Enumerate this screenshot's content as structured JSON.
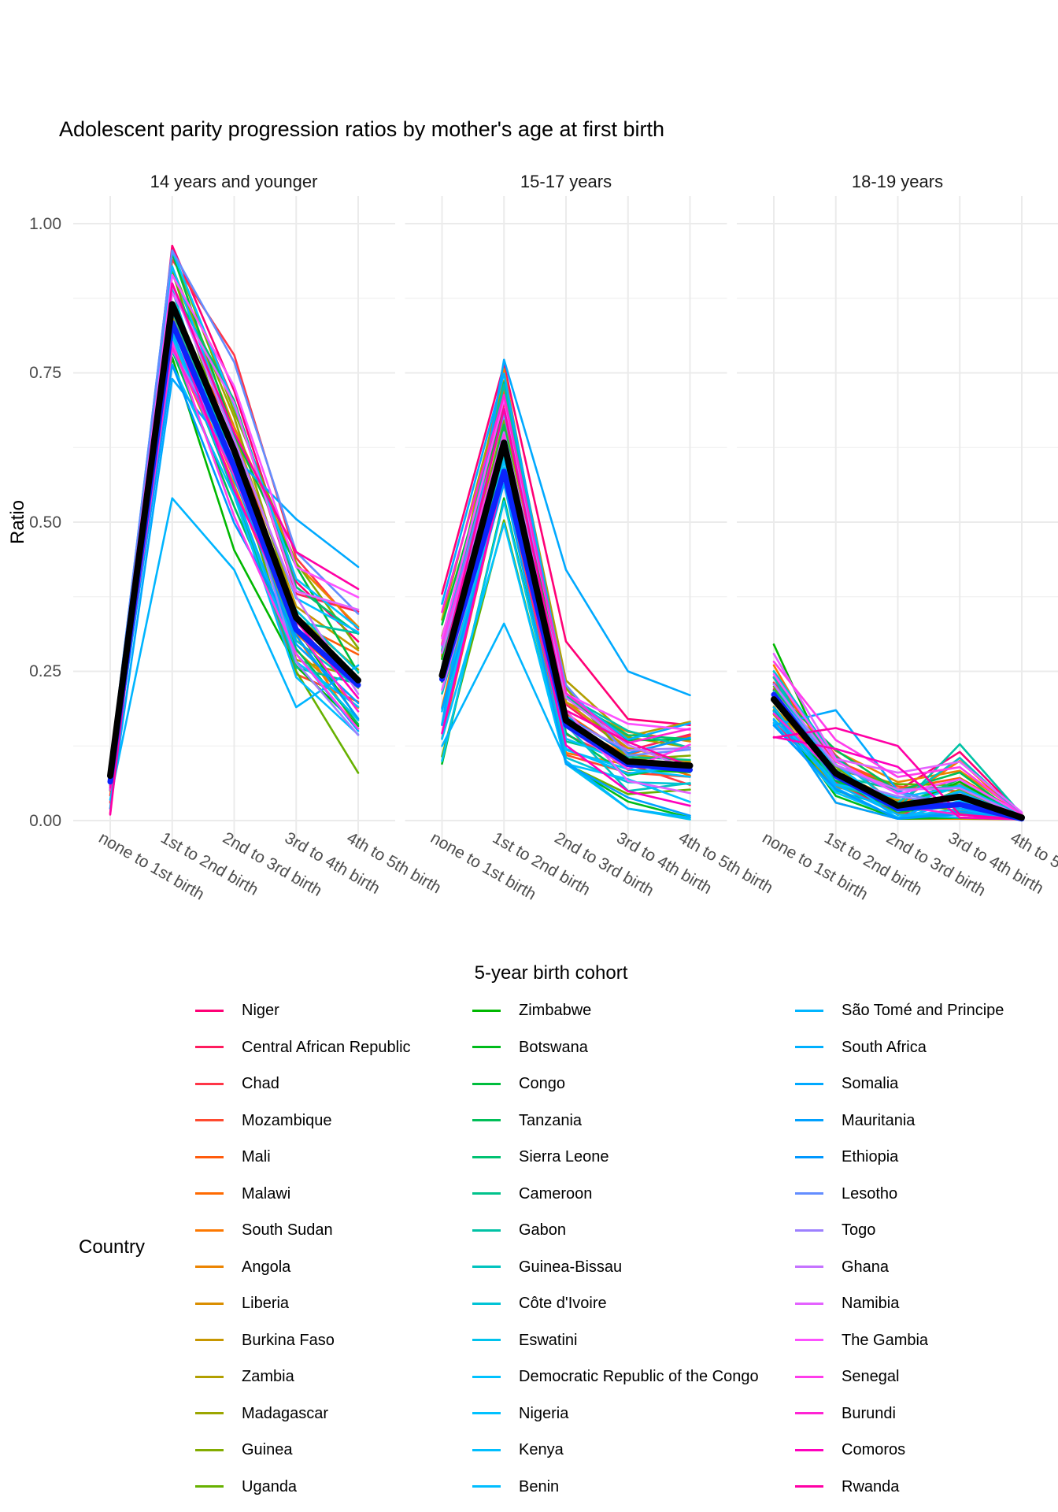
{
  "title": "Adolescent parity progression ratios by mother's age at first birth",
  "y_axis": {
    "label": "Ratio",
    "ticks": [
      "1.00",
      "0.75",
      "0.50",
      "0.25",
      "0.00"
    ]
  },
  "x_axis": {
    "label": "5-year birth cohort"
  },
  "legend": {
    "title": "Country",
    "columns": [
      [
        "Niger",
        "Central African Republic",
        "Chad",
        "Mozambique",
        "Mali",
        "Malawi",
        "South Sudan",
        "Angola",
        "Liberia",
        "Burkina Faso",
        "Zambia",
        "Madagascar",
        "Guinea",
        "Uganda"
      ],
      [
        "Zimbabwe",
        "Botswana",
        "Congo",
        "Tanzania",
        "Sierra Leone",
        "Cameroon",
        "Gabon",
        "Guinea-Bissau",
        "Côte d'Ivoire",
        "Eswatini",
        "Democratic Republic of the Congo",
        "Nigeria",
        "Kenya",
        "Benin"
      ],
      [
        "São Tomé and Principe",
        "South Africa",
        "Somalia",
        "Mauritania",
        "Ethiopia",
        "Lesotho",
        "Togo",
        "Ghana",
        "Namibia",
        "The Gambia",
        "Senegal",
        "Burundi",
        "Comoros",
        "Rwanda"
      ]
    ]
  },
  "colors": {
    "mean_line": "#000000",
    "median_line": "#0b24fb",
    "grid_major": "#ebebeb",
    "grid_minor": "#f0f0f0",
    "tick_text": "#4d4d4d",
    "strip_text": "#1a1a1a"
  },
  "chart_data": {
    "type": "line",
    "title": "Adolescent parity progression ratios by mother's age at first birth",
    "xlabel": "5-year birth cohort",
    "ylabel": "Ratio",
    "ylim": [
      0,
      1
    ],
    "y_ticks": [
      0,
      0.25,
      0.5,
      0.75,
      1
    ],
    "grid": "major h+v, minor horizontal only",
    "legend_position": "bottom",
    "facet_titles": [
      "14 years and younger",
      "15-17 years",
      "18-19 years"
    ],
    "categories": [
      "none to 1st birth",
      "1st to 2nd birth",
      "2nd to 3rd birth",
      "3rd to 4th birth",
      "4th to 5th birth"
    ],
    "series_note": "One line per country (42 visible in legend); thick black = overall mean, thick blue just beneath = overall median. Per-country lines lie inside band_min..band_max.",
    "facets": [
      {
        "title": "14 years and younger",
        "mean_black": [
          0.075,
          0.865,
          0.62,
          0.34,
          0.235
        ],
        "median_blue": [
          0.065,
          0.834,
          0.592,
          0.32,
          0.227
        ],
        "band_min": [
          0.01,
          0.7,
          0.45,
          0.2,
          0.085
        ],
        "band_max": [
          0.09,
          0.955,
          0.78,
          0.45,
          0.385
        ]
      },
      {
        "title": "15-17 years",
        "mean_black": [
          0.243,
          0.633,
          0.168,
          0.099,
          0.092
        ],
        "median_blue": [
          0.237,
          0.585,
          0.16,
          0.094,
          0.085
        ],
        "band_min": [
          0.09,
          0.47,
          0.095,
          0.02,
          0.005
        ],
        "band_max": [
          0.38,
          0.765,
          0.3,
          0.17,
          0.195
        ]
      },
      {
        "title": "18-19 years",
        "mean_black": [
          0.203,
          0.079,
          0.025,
          0.04,
          0.005
        ],
        "median_blue": [
          0.211,
          0.075,
          0.02,
          0.027,
          0.003
        ],
        "band_min": [
          0.139,
          0.03,
          0.003,
          0.003,
          0.0
        ],
        "band_max": [
          0.295,
          0.15,
          0.12,
          0.125,
          0.018
        ]
      }
    ],
    "highlight_series": [
      {
        "country": "Niger",
        "facet": 0,
        "values": [
          0.012,
          0.963,
          0.72,
          0.4,
          0.3
        ]
      },
      {
        "country": "Niger",
        "facet": 1,
        "values": [
          0.38,
          0.764,
          0.3,
          0.17,
          0.16
        ]
      },
      {
        "country": "Niger",
        "facet": 2,
        "values": [
          0.22,
          0.1,
          0.05,
          0.115,
          0.01
        ]
      },
      {
        "country": "Central African Republic",
        "facet": 0,
        "values": [
          0.02,
          0.95,
          0.7,
          0.38,
          0.35
        ]
      },
      {
        "country": "Chad",
        "facet": 0,
        "values": [
          0.03,
          0.94,
          0.78,
          0.44,
          0.32
        ]
      },
      {
        "country": "South Sudan",
        "facet": 2,
        "values": [
          0.26,
          0.08,
          0.03,
          0.1,
          0.005
        ]
      },
      {
        "country": "Uganda",
        "facet": 0,
        "values": [
          0.05,
          0.92,
          0.6,
          0.25,
          0.08
        ]
      },
      {
        "country": "Zimbabwe",
        "facet": 2,
        "values": [
          0.295,
          0.07,
          0.02,
          0.065,
          0.005
        ]
      },
      {
        "country": "Gabon",
        "facet": 2,
        "values": [
          0.25,
          0.05,
          0.02,
          0.128,
          0.01
        ]
      },
      {
        "country": "Guinea-Bissau",
        "facet": 2,
        "values": [
          0.24,
          0.06,
          0.03,
          0.105,
          0.008
        ]
      },
      {
        "country": "Eswatini",
        "facet": 1,
        "values": [
          0.1,
          0.535,
          0.095,
          0.02,
          0.002
        ]
      },
      {
        "country": "São Tomé and Principe",
        "facet": 0,
        "values": [
          0.035,
          0.54,
          0.42,
          0.19,
          0.26
        ]
      },
      {
        "country": "São Tomé and Principe",
        "facet": 1,
        "values": [
          0.125,
          0.33,
          0.1,
          0.02,
          0.005
        ]
      },
      {
        "country": "São Tomé and Principe",
        "facet": 2,
        "values": [
          0.17,
          0.06,
          0.01,
          0.005,
          0.0
        ]
      },
      {
        "country": "Somalia",
        "facet": 0,
        "values": [
          0.02,
          0.74,
          0.61,
          0.505,
          0.425
        ]
      },
      {
        "country": "Somalia",
        "facet": 1,
        "values": [
          0.16,
          0.772,
          0.42,
          0.25,
          0.21
        ]
      },
      {
        "country": "Somalia",
        "facet": 2,
        "values": [
          0.16,
          0.185,
          0.05,
          0.02,
          0.005
        ]
      },
      {
        "country": "Rwanda",
        "facet": 0,
        "values": [
          0.01,
          0.9,
          0.65,
          0.45,
          0.388
        ]
      },
      {
        "country": "Rwanda",
        "facet": 2,
        "values": [
          0.139,
          0.155,
          0.125,
          0.01,
          0.0
        ]
      },
      {
        "country": "Comoros",
        "facet": 2,
        "values": [
          0.14,
          0.12,
          0.09,
          0.005,
          0.0
        ]
      }
    ]
  }
}
